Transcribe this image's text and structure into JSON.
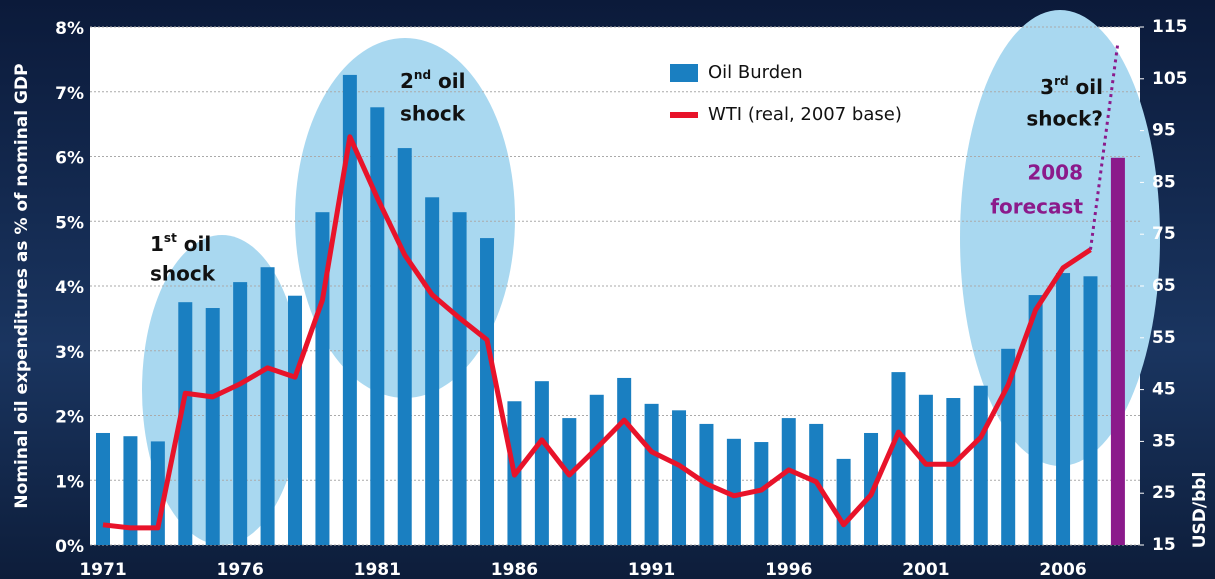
{
  "chart_data": {
    "type": "bar-line",
    "y_label": "Nominal oil expenditures as % of nominal GDP",
    "y2_label": "USD/bbl",
    "categories": [
      "1971",
      null,
      null,
      null,
      null,
      "1976",
      null,
      null,
      null,
      null,
      "1981",
      null,
      null,
      null,
      null,
      "1986",
      null,
      null,
      null,
      null,
      "1991",
      null,
      null,
      null,
      null,
      "1996",
      null,
      null,
      null,
      null,
      "2001",
      null,
      null,
      null,
      null,
      "2006",
      null,
      null
    ],
    "ylim": [
      0,
      8
    ],
    "yticks": [
      {
        "value": 0,
        "label": "0%"
      },
      {
        "value": 1,
        "label": "1%"
      },
      {
        "value": 2,
        "label": "2%"
      },
      {
        "value": 3,
        "label": "3%"
      },
      {
        "value": 4,
        "label": "4%"
      },
      {
        "value": 5,
        "label": "5%"
      },
      {
        "value": 6,
        "label": "6%"
      },
      {
        "value": 7,
        "label": "7%"
      },
      {
        "value": 8,
        "label": "8%"
      }
    ],
    "y2lim": [
      15,
      115
    ],
    "y2ticks": [
      15,
      25,
      35,
      45,
      55,
      65,
      75,
      85,
      95,
      105,
      115
    ],
    "grid": true,
    "series": [
      {
        "name": "Oil Burden",
        "color": "#1a7fc1",
        "values": [
          1.73,
          1.68,
          1.6,
          3.75,
          3.66,
          4.06,
          4.29,
          3.85,
          5.14,
          7.26,
          6.76,
          6.13,
          5.37,
          5.14,
          4.74,
          2.22,
          2.53,
          1.96,
          2.32,
          2.58,
          2.18,
          2.08,
          1.87,
          1.64,
          1.59,
          1.96,
          1.87,
          1.33,
          1.73,
          2.67,
          2.32,
          2.27,
          2.46,
          3.03,
          3.86,
          4.2,
          4.15,
          5.98
        ],
        "colors": [
          "#1a7fc1",
          "#1a7fc1",
          "#1a7fc1",
          "#1a7fc1",
          "#1a7fc1",
          "#1a7fc1",
          "#1a7fc1",
          "#1a7fc1",
          "#1a7fc1",
          "#1a7fc1",
          "#1a7fc1",
          "#1a7fc1",
          "#1a7fc1",
          "#1a7fc1",
          "#1a7fc1",
          "#1a7fc1",
          "#1a7fc1",
          "#1a7fc1",
          "#1a7fc1",
          "#1a7fc1",
          "#1a7fc1",
          "#1a7fc1",
          "#1a7fc1",
          "#1a7fc1",
          "#1a7fc1",
          "#1a7fc1",
          "#1a7fc1",
          "#1a7fc1",
          "#1a7fc1",
          "#1a7fc1",
          "#1a7fc1",
          "#1a7fc1",
          "#1a7fc1",
          "#1a7fc1",
          "#1a7fc1",
          "#1a7fc1",
          "#1a7fc1",
          "#8b1a8b"
        ]
      },
      {
        "name": "WTI (real, 2007 base)",
        "color": "#e8132a",
        "axis": "y2",
        "values": [
          18.9,
          18.3,
          18.3,
          44.3,
          43.6,
          46.1,
          49.2,
          47.4,
          62.3,
          93.8,
          82,
          71,
          63.3,
          58.8,
          54.6,
          28.5,
          35.3,
          28.5,
          33.7,
          39.1,
          33,
          30.4,
          26.8,
          24.5,
          25.6,
          29.5,
          27.2,
          18.9,
          24.7,
          36.8,
          30.6,
          30.6,
          35.8,
          45.9,
          60.4,
          68.5,
          72,
          null
        ]
      }
    ],
    "forecast_line": {
      "color": "#8b1a8b",
      "axis": "y2",
      "values": [
        null,
        null,
        null,
        null,
        null,
        null,
        null,
        null,
        null,
        null,
        null,
        null,
        null,
        null,
        null,
        null,
        null,
        null,
        null,
        null,
        null,
        null,
        null,
        null,
        null,
        null,
        null,
        null,
        null,
        null,
        null,
        null,
        null,
        null,
        null,
        null,
        72,
        112
      ]
    },
    "annotations": [
      {
        "lead": "1",
        "sup": "st",
        "tail": " oil",
        "line2": "shock"
      },
      {
        "lead": "2",
        "sup": "nd",
        "tail": " oil",
        "line2": "shock"
      },
      {
        "lead": "3",
        "sup": "rd",
        "tail": " oil",
        "line2": "shock?"
      },
      {
        "line1": "2008",
        "line2": "forecast"
      }
    ]
  }
}
